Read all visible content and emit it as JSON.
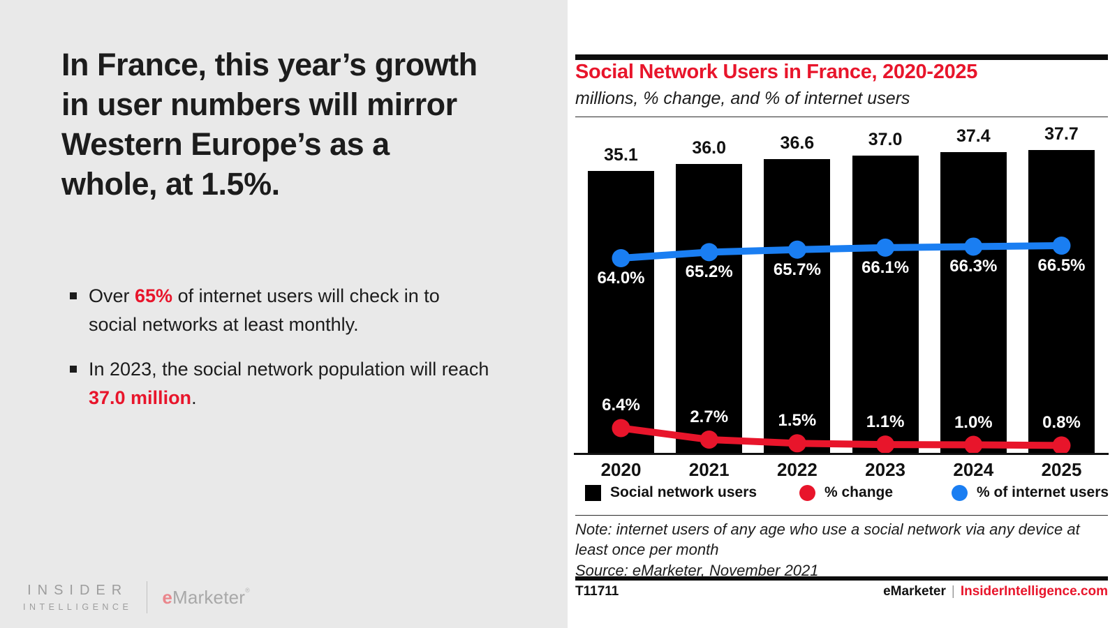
{
  "left_panel": {
    "headline": "In France, this year’s growth in user numbers will mirror Western Europe’s as a whole, at 1.5%.",
    "bullets": [
      {
        "pre": "Over ",
        "highlight": "65%",
        "post": " of internet users will check in to social networks at least monthly."
      },
      {
        "pre": "In 2023, the social network population will reach ",
        "highlight": "37.0 million",
        "post": "."
      }
    ],
    "logo": {
      "insider_line1": "INSIDER",
      "insider_line2": "INTELLIGENCE",
      "emarketer_e": "e",
      "emarketer_rest": "Marketer",
      "reg_mark": "®"
    }
  },
  "chart": {
    "title": "Social Network Users in France, 2020-2025",
    "subtitle": "millions, % change, and % of internet users",
    "note": "Note: internet users of any age who use a social network via any device at least once per month",
    "source": "Source: eMarketer, November 2021",
    "footer_id": "T11711",
    "footer_brand": "eMarketer",
    "footer_separator": "|",
    "footer_site": "InsiderIntelligence.com"
  },
  "chart_data": {
    "type": "bar",
    "title": "Social Network Users in France, 2020-2025",
    "subtitle": "millions, % change, and % of internet users",
    "categories": [
      "2020",
      "2021",
      "2022",
      "2023",
      "2024",
      "2025"
    ],
    "series": [
      {
        "name": "Social network users",
        "type": "bar",
        "unit": "millions",
        "color": "#000000",
        "values": [
          35.1,
          36.0,
          36.6,
          37.0,
          37.4,
          37.7
        ]
      },
      {
        "name": "% change",
        "type": "line",
        "unit": "%",
        "color": "#e8152b",
        "values": [
          6.4,
          2.7,
          1.5,
          1.1,
          1.0,
          0.8
        ]
      },
      {
        "name": "% of internet users",
        "type": "line",
        "unit": "%",
        "color": "#1a7ef2",
        "values": [
          64.0,
          65.2,
          65.7,
          66.1,
          66.3,
          66.5
        ]
      }
    ],
    "legend_position": "bottom",
    "grid": false,
    "ylim_bars": [
      0,
      40
    ]
  },
  "colors": {
    "accent_red": "#e8152b",
    "accent_blue": "#1a7ef2",
    "bar_black": "#000000",
    "left_bg": "#e9e9e9"
  }
}
